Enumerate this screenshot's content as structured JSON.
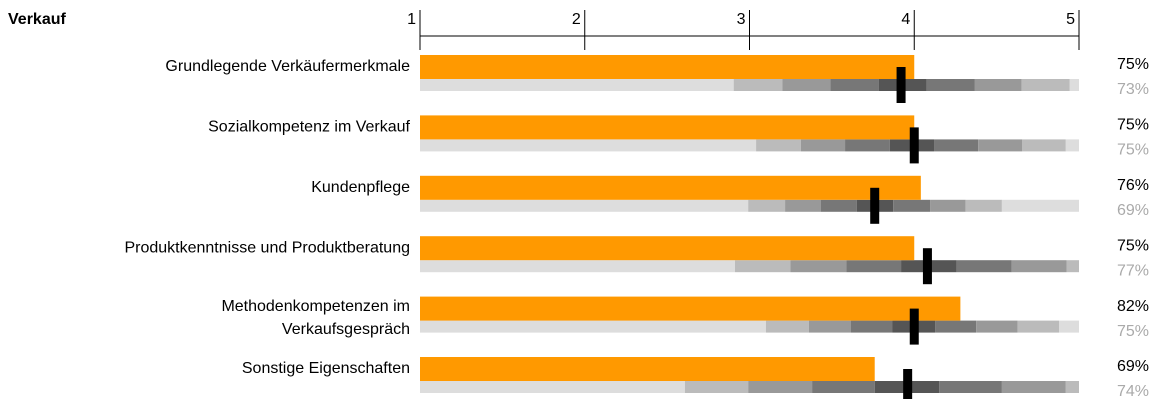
{
  "chart_data": {
    "type": "bullet",
    "title": "Verkauf",
    "categories": [
      "Grundlegende Verkäufermerkmale",
      "Sozialkompetenz im Verkauf",
      "Kundenpflege",
      "Produktkenntnisse und Produktberatung",
      [
        "Methodenkompetenzen im",
        "Verkaufsgespräch"
      ],
      "Sonstige Eigenschaften"
    ],
    "xlim": [
      0,
      100
    ],
    "xticks": [
      {
        "value": 0,
        "label": "1"
      },
      {
        "value": 25,
        "label": "2"
      },
      {
        "value": 50,
        "label": "3"
      },
      {
        "value": 75,
        "label": "4"
      },
      {
        "value": 100,
        "label": "5"
      }
    ],
    "series": [
      {
        "color": "#ff9900",
        "values": [
          75,
          75,
          76,
          75,
          82,
          69
        ],
        "value_labels": [
          "75%",
          "75%",
          "76%",
          "75%",
          "82%",
          "69%"
        ]
      },
      {
        "color": "#000000",
        "values": [
          73,
          75,
          69,
          77,
          75,
          74
        ],
        "value_labels": [
          "73%",
          "75%",
          "69%",
          "77%",
          "75%",
          "74%"
        ]
      }
    ],
    "bands": [
      [
        0,
        47.6,
        55,
        62.3,
        69.6,
        76.9,
        84.2,
        91.3,
        98.6,
        100
      ],
      [
        0,
        51,
        57.8,
        64.5,
        71.3,
        78,
        84.7,
        91.4,
        98,
        100
      ],
      [
        0,
        49.8,
        55.4,
        60.8,
        66.3,
        71.8,
        77.4,
        82.8,
        88.3,
        100
      ],
      [
        0,
        47.8,
        56.2,
        64.7,
        73,
        81.4,
        89.8,
        98.1,
        100
      ],
      [
        0,
        52.5,
        59,
        65.4,
        71.7,
        78.2,
        84.4,
        90.7,
        97,
        100
      ],
      [
        0,
        40.2,
        49.8,
        59.5,
        69,
        78.8,
        88.3,
        98,
        100
      ]
    ],
    "band_colors": [
      "#dddddd",
      "#bbbbbb",
      "#999999",
      "#777777",
      "#555555",
      "#777777",
      "#999999",
      "#bbbbbb",
      "#dddddd"
    ]
  }
}
